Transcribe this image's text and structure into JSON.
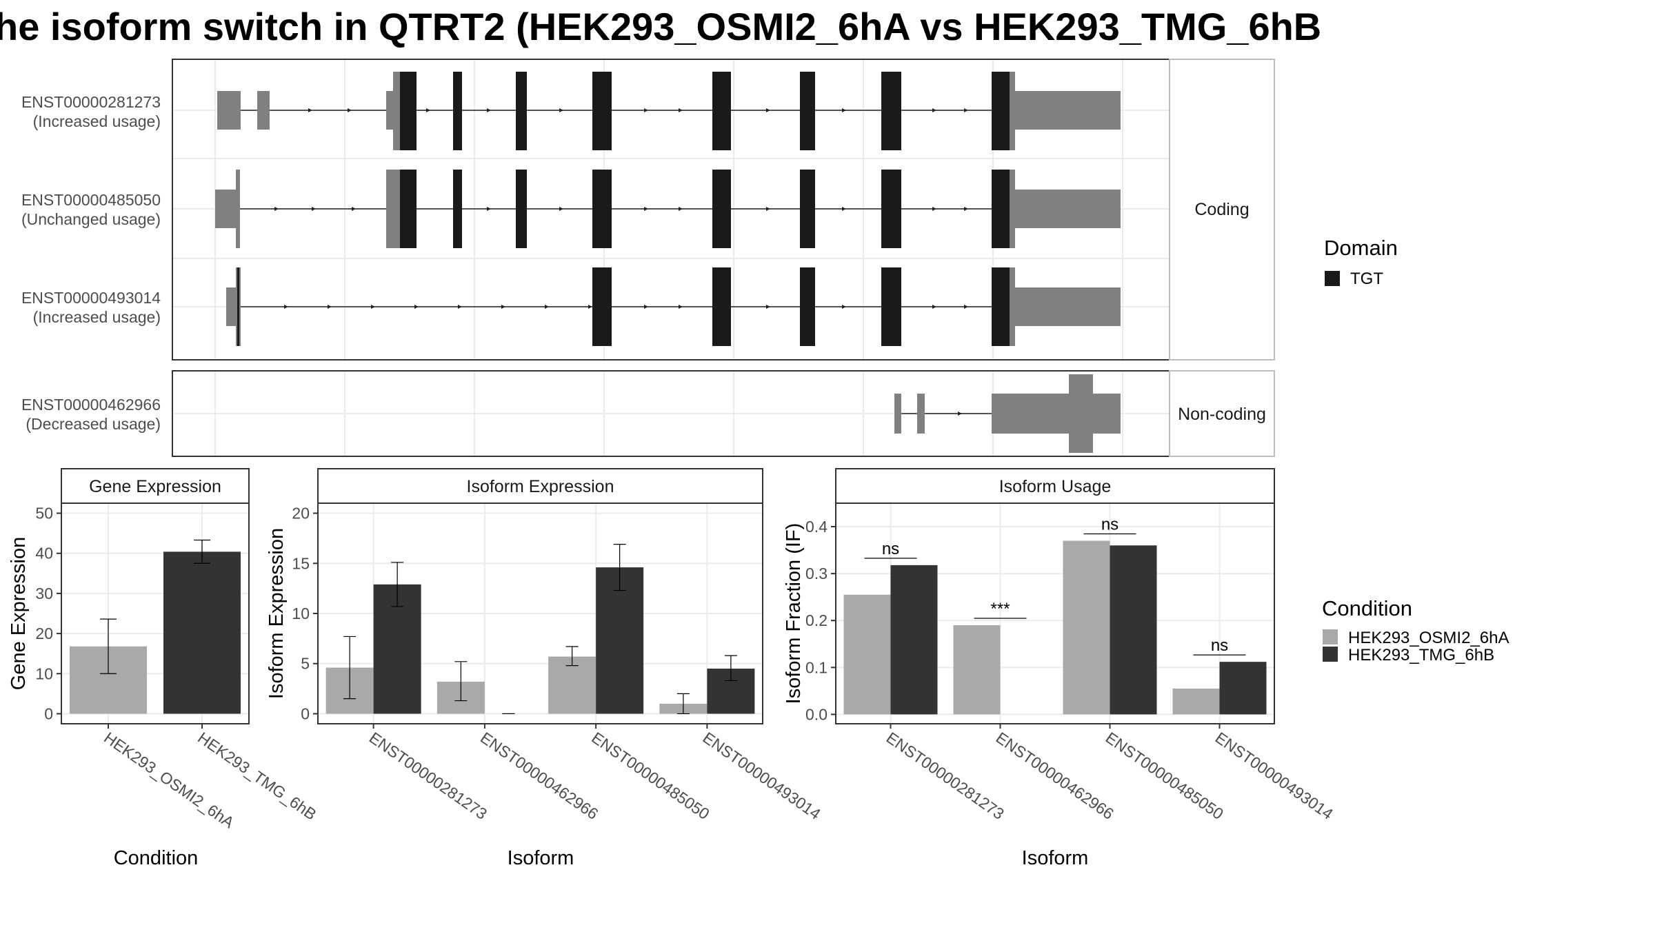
{
  "title": "he isoform switch in QTRT2 (HEK293_OSMI2_6hA vs HEK293_TMG_6hB",
  "colors": {
    "condA": "#a9a9a9",
    "condB": "#333333",
    "utr": "#808080",
    "domain": "#1a1a1a",
    "panel_border": "#333333",
    "strip_fill": "#ffffff",
    "grid": "#ebebeb"
  },
  "transcripts": {
    "facet_coding": "Coding",
    "facet_noncoding": "Non-coding",
    "coding": [
      {
        "id": "ENST00000281273",
        "usage": "(Increased usage)"
      },
      {
        "id": "ENST00000485050",
        "usage": "(Unchanged usage)"
      },
      {
        "id": "ENST00000493014",
        "usage": "(Increased usage)"
      }
    ],
    "noncoding": [
      {
        "id": "ENST00000462966",
        "usage": "(Decreased usage)"
      }
    ]
  },
  "legend_domain": {
    "title": "Domain",
    "items": [
      {
        "label": "TGT",
        "color": "#1a1a1a"
      }
    ]
  },
  "legend_condition": {
    "title": "Condition",
    "items": [
      {
        "label": "HEK293_OSMI2_6hA",
        "color": "#a9a9a9"
      },
      {
        "label": "HEK293_TMG_6hB",
        "color": "#333333"
      }
    ]
  },
  "chart_data": [
    {
      "type": "bar",
      "title": "Gene Expression",
      "xlabel": "Condition",
      "ylabel": "Gene Expression",
      "categories": [
        "HEK293_OSMI2_6hA",
        "HEK293_TMG_6hB"
      ],
      "values": [
        16.8,
        40.4
      ],
      "error_low": [
        10.0,
        37.5
      ],
      "error_high": [
        23.6,
        43.3
      ],
      "ylim": [
        -2.5,
        52.5
      ],
      "yticks": [
        0,
        10,
        20,
        30,
        40,
        50
      ]
    },
    {
      "type": "bar",
      "title": "Isoform Expression",
      "xlabel": "Isoform",
      "ylabel": "Isoform Expression",
      "categories": [
        "ENST00000281273",
        "ENST00000462966",
        "ENST00000485050",
        "ENST00000493014"
      ],
      "series": [
        {
          "name": "HEK293_OSMI2_6hA",
          "values": [
            4.6,
            3.2,
            5.7,
            1.0
          ],
          "error_low": [
            1.5,
            1.3,
            4.8,
            0.0
          ],
          "error_high": [
            7.7,
            5.2,
            6.7,
            2.0
          ]
        },
        {
          "name": "HEK293_TMG_6hB",
          "values": [
            12.9,
            0.0,
            14.6,
            4.5
          ],
          "error_low": [
            10.7,
            0.0,
            12.3,
            3.3
          ],
          "error_high": [
            15.1,
            0.0,
            16.9,
            5.8
          ]
        }
      ],
      "ylim": [
        -1,
        21
      ],
      "yticks": [
        0,
        5,
        10,
        15,
        20
      ]
    },
    {
      "type": "bar",
      "title": "Isoform Usage",
      "xlabel": "Isoform",
      "ylabel": "Isoform Fraction (IF)",
      "categories": [
        "ENST00000281273",
        "ENST00000462966",
        "ENST00000485050",
        "ENST00000493014"
      ],
      "series": [
        {
          "name": "HEK293_OSMI2_6hA",
          "values": [
            0.255,
            0.19,
            0.37,
            0.055
          ]
        },
        {
          "name": "HEK293_TMG_6hB",
          "values": [
            0.318,
            0.0,
            0.36,
            0.112
          ]
        }
      ],
      "significance": [
        "ns",
        "***",
        "ns",
        "ns"
      ],
      "ylim": [
        -0.02,
        0.45
      ],
      "yticks": [
        0.0,
        0.1,
        0.2,
        0.3,
        0.4
      ],
      "ytick_labels": [
        "0.0",
        "0.1",
        "0.2",
        "0.3",
        "0.4"
      ]
    }
  ]
}
